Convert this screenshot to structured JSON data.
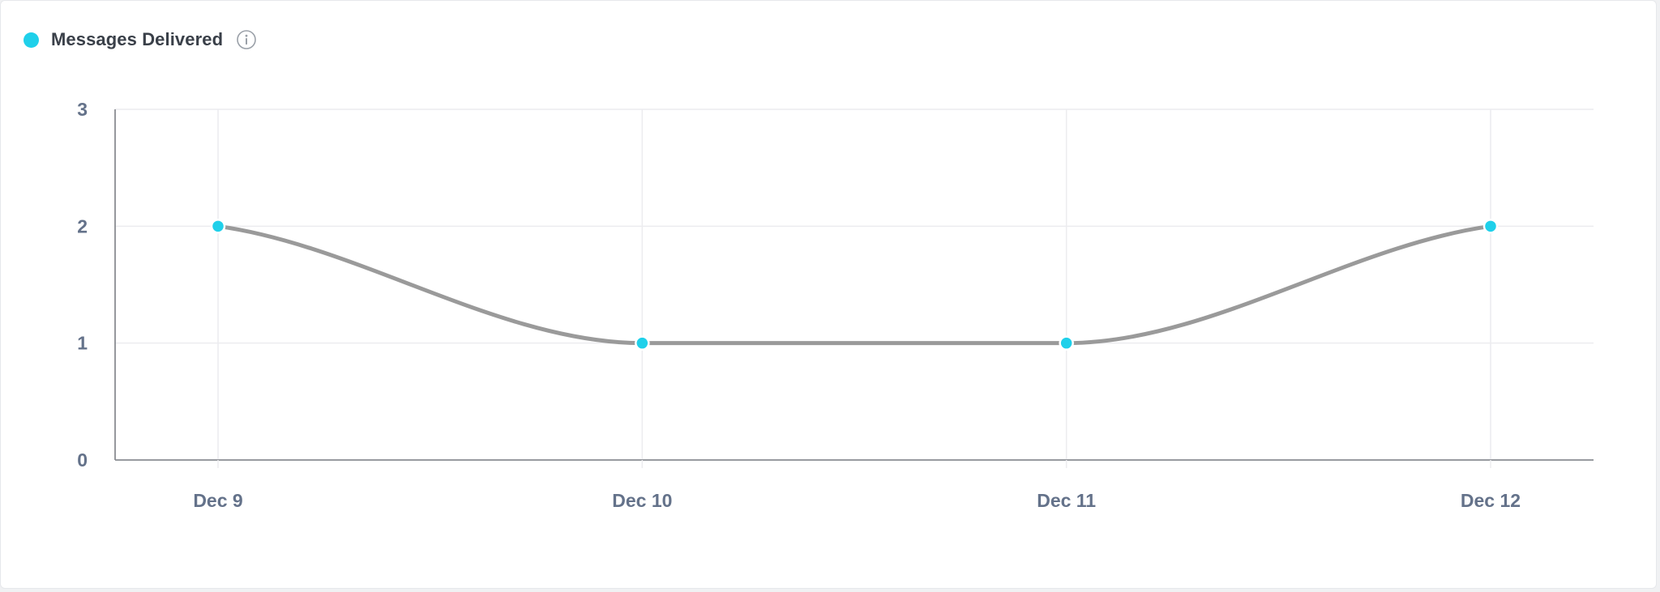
{
  "legend": {
    "label": "Messages Delivered",
    "dot_icon": "legend-dot-icon",
    "info_icon": "info-icon"
  },
  "colors": {
    "series_point": "#1fd0ea",
    "series_line": "#9a9a9a",
    "tick_text": "#64728a",
    "grid": "#ececef",
    "axis": "#8a8d92"
  },
  "chart_data": {
    "type": "line",
    "title": "",
    "xlabel": "",
    "ylabel": "",
    "categories": [
      "Dec 9",
      "Dec 10",
      "Dec 11",
      "Dec 12"
    ],
    "y_ticks": [
      0,
      1,
      2,
      3
    ],
    "ylim": [
      0,
      3
    ],
    "grid": true,
    "smooth": true,
    "legend_position": "top-left",
    "series": [
      {
        "name": "Messages Delivered",
        "values": [
          2,
          1,
          1,
          2
        ]
      }
    ]
  }
}
